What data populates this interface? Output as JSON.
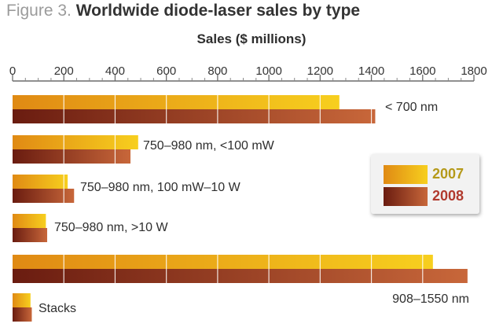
{
  "figure_label": "Figure 3.",
  "figure_title": "Worldwide diode-laser sales by type",
  "colors": {
    "series_2007_light": "#f7cf1e",
    "series_2007_dark": "#e08a14",
    "series_2008_light": "#c8673a",
    "series_2008_dark": "#6a1c10",
    "legend_2007_text": "#b59a1a",
    "legend_2008_text": "#b13a2e"
  },
  "chart_data": {
    "type": "bar",
    "orientation": "horizontal",
    "xlabel": "Sales ($ millions)",
    "xlim": [
      0,
      1800
    ],
    "xticks": [
      "0",
      "200",
      "400",
      "600",
      "800",
      "1000",
      "1200",
      "1400",
      "1600",
      "1800"
    ],
    "categories": [
      "< 700 nm",
      "750–980 nm, <100 mW",
      "750–980 nm, 100 mW–10 W",
      "750–980 nm, >10 W",
      "908–1550 nm",
      "Stacks"
    ],
    "series": [
      {
        "name": "2007",
        "values": [
          1275,
          490,
          215,
          130,
          1640,
          70
        ]
      },
      {
        "name": "2008",
        "values": [
          1415,
          460,
          240,
          135,
          1775,
          75
        ]
      }
    ],
    "grid": true,
    "legend": "right"
  }
}
